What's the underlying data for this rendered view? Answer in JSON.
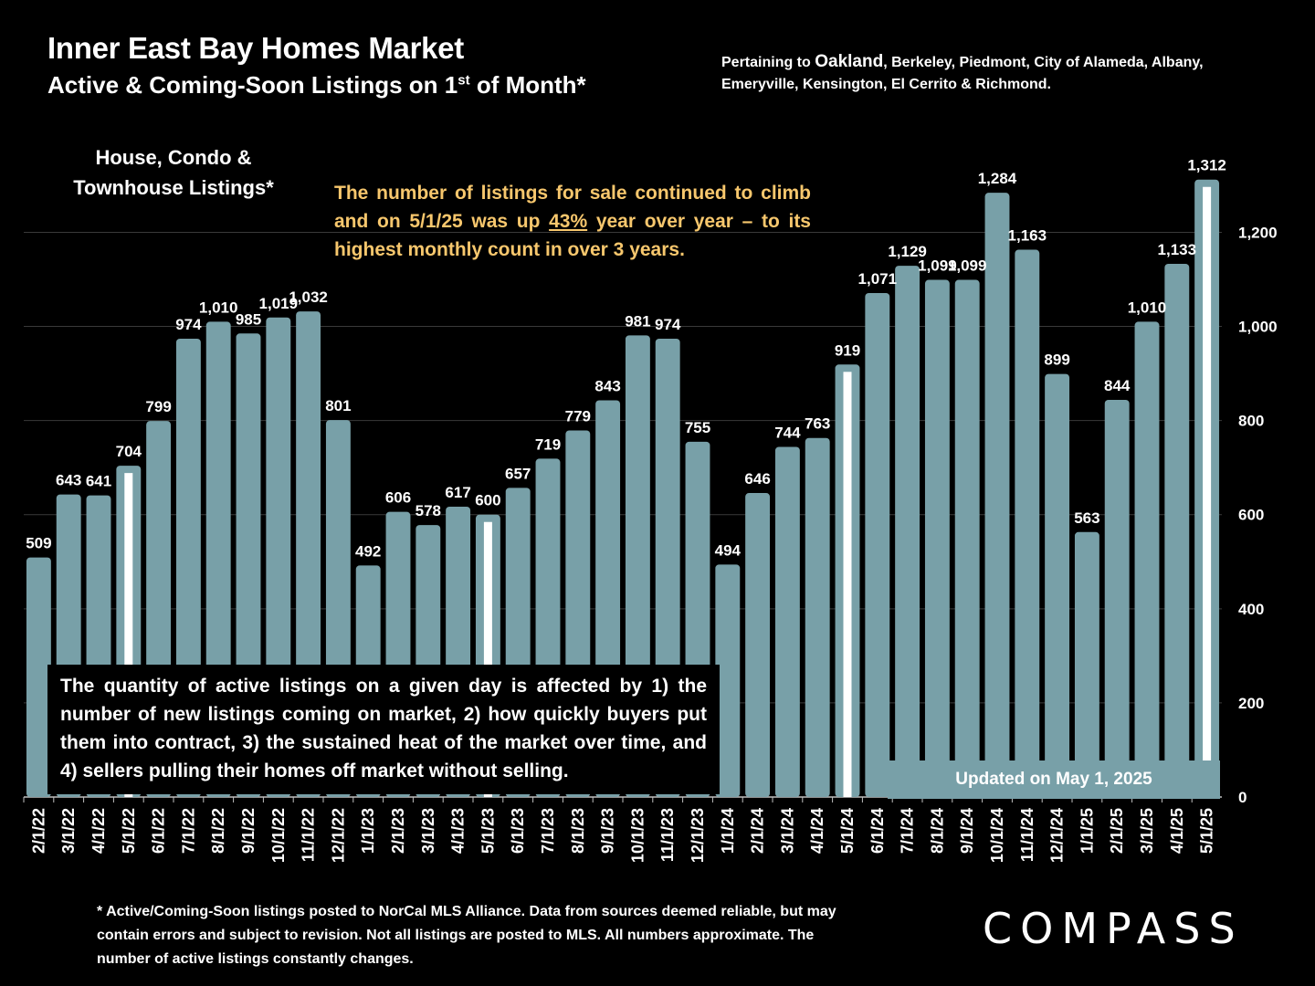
{
  "header": {
    "title": "Inner East Bay Homes Market",
    "subtitle_main": "Active & Coming-Soon Listings on 1",
    "subtitle_sup": "st",
    "subtitle_end": " of Month*",
    "pertaining_prefix": "Pertaining to ",
    "pertaining_city": "Oakland",
    "pertaining_rest": ", Berkeley, Piedmont, City of Alameda, Albany, Emeryville, Kensington, El Cerrito & Richmond."
  },
  "category_label": "House, Condo & Townhouse Listings*",
  "highlight": {
    "before": "The number of listings for sale continued to climb and on 5/1/25 was up ",
    "underlined": "43%",
    "after": " year over year – to its highest monthly count in over 3 years.",
    "color": "#f7c76d"
  },
  "note": "The quantity of active listings on a given day is affected by 1) the number of new listings coming on market, 2) how quickly buyers put them into contract, 3) the sustained heat of the market over time, and 4) sellers pulling their homes off market without selling.",
  "updated": "Updated on May 1, 2025",
  "footnote": "* Active/Coming-Soon listings posted to NorCal MLS Alliance.  Data from sources deemed reliable, but may contain errors and subject to revision.  Not all listings are posted to MLS. All numbers approximate. The number of active listings constantly changes.",
  "logo": "COMPASS",
  "chart_data": {
    "type": "bar",
    "categories": [
      "2/1/22",
      "3/1/22",
      "4/1/22",
      "5/1/22",
      "6/1/22",
      "7/1/22",
      "8/1/22",
      "9/1/22",
      "10/1/22",
      "11/1/22",
      "12/1/22",
      "1/1/23",
      "2/1/23",
      "3/1/23",
      "4/1/23",
      "5/1/23",
      "6/1/23",
      "7/1/23",
      "8/1/23",
      "9/1/23",
      "10/1/23",
      "11/1/23",
      "12/1/23",
      "1/1/24",
      "2/1/24",
      "3/1/24",
      "4/1/24",
      "5/1/24",
      "6/1/24",
      "7/1/24",
      "8/1/24",
      "9/1/24",
      "10/1/24",
      "11/1/24",
      "12/1/24",
      "1/1/25",
      "2/1/25",
      "3/1/25",
      "4/1/25",
      "5/1/25"
    ],
    "values": [
      509,
      643,
      641,
      704,
      799,
      974,
      1010,
      985,
      1019,
      1032,
      801,
      492,
      606,
      578,
      617,
      600,
      657,
      719,
      779,
      843,
      981,
      974,
      755,
      494,
      646,
      744,
      763,
      919,
      1071,
      1129,
      1099,
      1099,
      1284,
      1163,
      899,
      563,
      844,
      1010,
      1133,
      1312
    ],
    "data_labels": [
      "509",
      "643",
      "641",
      "704",
      "799",
      "974",
      "1,010",
      "985",
      "1,019",
      "1,032",
      "801",
      "492",
      "606",
      "578",
      "617",
      "600",
      "657",
      "719",
      "779",
      "843",
      "981",
      "974",
      "755",
      "494",
      "646",
      "744",
      "763",
      "919",
      "1,071",
      "1,129",
      "1,099",
      "1,099",
      "1,284",
      "1,163",
      "899",
      "563",
      "844",
      "1,010",
      "1,133",
      "1,312"
    ],
    "highlighted": [
      "5/1/22",
      "5/1/23",
      "5/1/24",
      "5/1/25"
    ],
    "y_ticks": [
      0,
      200,
      400,
      600,
      800,
      1000,
      1200
    ],
    "y_tick_labels": [
      "0",
      "200",
      "400",
      "600",
      "800",
      "1,000",
      "1,200"
    ],
    "ylim": [
      0,
      1360
    ],
    "y_axis_side": "right",
    "bar_color": "#78a0a8",
    "highlight_color": "#ffffff",
    "grid": true,
    "title": "Inner East Bay Homes Market",
    "xlabel": "",
    "ylabel": ""
  }
}
